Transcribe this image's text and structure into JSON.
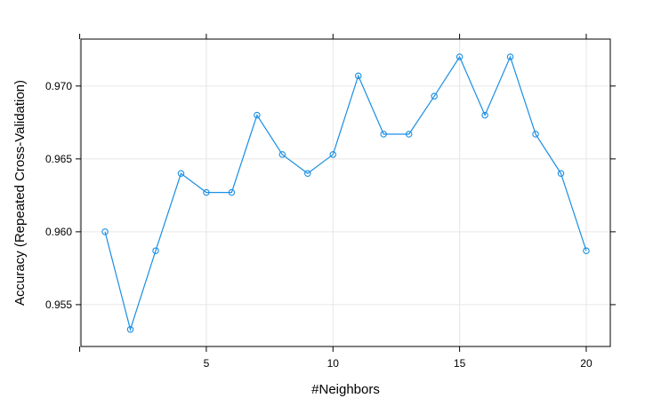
{
  "chart_data": {
    "type": "line",
    "title": "",
    "xlabel": "#Neighbors",
    "ylabel": "Accuracy (Repeated Cross-Validation)",
    "xlim": [
      0.05,
      20.95
    ],
    "ylim": [
      0.95213,
      0.97322
    ],
    "xticks": [
      5,
      10,
      15,
      20
    ],
    "yticks": [
      0.955,
      0.96,
      0.965,
      0.97
    ],
    "ytick_labels": [
      "0.955",
      "0.960",
      "0.965",
      "0.970"
    ],
    "x_minor_ticks": [
      0,
      5,
      10,
      15,
      20
    ],
    "grid": true,
    "series": [
      {
        "color": "#1a8fe3",
        "marker": "open-circle",
        "x": [
          1,
          2,
          3,
          4,
          5,
          6,
          7,
          8,
          9,
          10,
          11,
          12,
          13,
          14,
          15,
          16,
          17,
          18,
          19,
          20
        ],
        "y": [
          0.96,
          0.9533,
          0.9587,
          0.964,
          0.9627,
          0.9627,
          0.968,
          0.9653,
          0.964,
          0.9653,
          0.9707,
          0.9667,
          0.9667,
          0.9693,
          0.972,
          0.968,
          0.972,
          0.9667,
          0.964,
          0.9587
        ]
      }
    ]
  }
}
